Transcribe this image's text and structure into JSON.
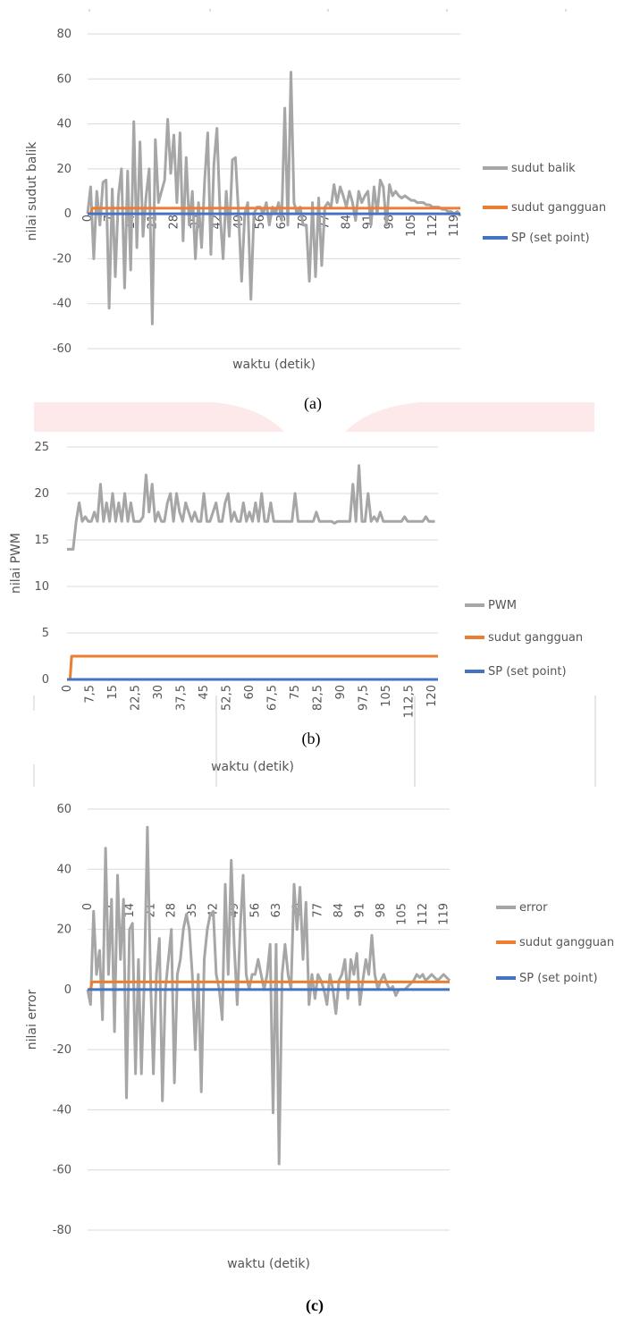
{
  "captions": [
    "(a)",
    "(b)",
    "(c)"
  ],
  "colors": {
    "series_gray": "#a6a6a6",
    "series_orange": "#ed7d31",
    "series_blue": "#4472c4",
    "gridline": "#d9d9d9",
    "band_pink": "#fde9e9"
  },
  "chart_data": [
    {
      "type": "line",
      "ylabel": "nilai sudut balik",
      "xlabel": "waktu (detik)",
      "ylim": [
        -60,
        80
      ],
      "yticks": [
        -60,
        -40,
        -20,
        0,
        20,
        40,
        60,
        80
      ],
      "xlim": [
        0,
        121
      ],
      "xtick_labels": [
        "0",
        "7",
        "14",
        "21",
        "28",
        "35",
        "42",
        "49",
        "56",
        "63",
        "70",
        "77",
        "84",
        "91",
        "98",
        "105",
        "112",
        "119"
      ],
      "xtick_values": [
        0,
        7,
        14,
        21,
        28,
        35,
        42,
        49,
        56,
        63,
        70,
        77,
        84,
        91,
        98,
        105,
        112,
        119
      ],
      "grid": true,
      "legend_position": "right",
      "series": [
        {
          "name": "sudut balik",
          "color": "gray",
          "x": [
            0,
            1,
            2,
            3,
            4,
            5,
            6,
            7,
            8,
            9,
            10,
            11,
            12,
            13,
            14,
            15,
            16,
            17,
            18,
            19,
            20,
            21,
            22,
            23,
            24,
            25,
            26,
            27,
            28,
            29,
            30,
            31,
            32,
            33,
            34,
            35,
            36,
            37,
            38,
            39,
            40,
            41,
            42,
            43,
            44,
            45,
            46,
            47,
            48,
            49,
            50,
            51,
            52,
            53,
            54,
            55,
            56,
            57,
            58,
            59,
            60,
            61,
            62,
            63,
            64,
            65,
            66,
            67,
            68,
            69,
            70,
            71,
            72,
            73,
            74,
            75,
            76,
            77,
            78,
            79,
            80,
            81,
            82,
            83,
            84,
            85,
            86,
            87,
            88,
            89,
            90,
            91,
            92,
            93,
            94,
            95,
            96,
            97,
            98,
            99,
            100,
            101,
            102,
            103,
            104,
            105,
            106,
            107,
            108,
            109,
            110,
            111,
            112,
            113,
            114,
            115,
            116,
            117,
            118,
            119,
            120,
            121
          ],
          "y": [
            0,
            12,
            -20,
            10,
            -5,
            14,
            15,
            -42,
            11,
            -28,
            8,
            20,
            -33,
            19,
            -25,
            41,
            -15,
            32,
            -10,
            8,
            20,
            -49,
            33,
            5,
            10,
            15,
            42,
            18,
            35,
            5,
            36,
            -12,
            25,
            -5,
            10,
            -20,
            5,
            -15,
            15,
            36,
            -18,
            22,
            38,
            0,
            -20,
            10,
            -10,
            24,
            25,
            0,
            -30,
            0,
            5,
            -38,
            0,
            3,
            3,
            0,
            5,
            -5,
            3,
            0,
            5,
            -3,
            47,
            -5,
            63,
            5,
            0,
            3,
            -5,
            -5,
            -30,
            5,
            -28,
            7,
            -23,
            3,
            5,
            3,
            13,
            5,
            12,
            8,
            3,
            10,
            5,
            -3,
            10,
            5,
            8,
            10,
            -5,
            12,
            0,
            15,
            12,
            -5,
            13,
            8,
            10,
            8,
            7,
            8,
            7,
            6,
            6,
            5,
            5,
            5,
            4,
            4,
            3,
            3,
            3,
            2,
            2,
            1,
            1,
            0,
            1,
            -1
          ]
        },
        {
          "name": "sudut gangguan",
          "color": "orange",
          "x": [
            0,
            1,
            1.5,
            121
          ],
          "y": [
            0,
            0,
            2.5,
            2.5
          ]
        },
        {
          "name": "SP (set point)",
          "color": "blue",
          "x": [
            0,
            121
          ],
          "y": [
            0,
            0
          ]
        }
      ]
    },
    {
      "type": "line",
      "ylabel": "nilai PWM",
      "xlabel": "waktu (detik)",
      "ylim": [
        0,
        25
      ],
      "yticks": [
        0,
        5,
        10,
        15,
        20,
        25
      ],
      "xlim": [
        0,
        122
      ],
      "xtick_labels": [
        "0",
        "7,5",
        "15",
        "22,5",
        "30",
        "37,5",
        "45",
        "52,5",
        "60",
        "67,5",
        "75",
        "82,5",
        "90",
        "97,5",
        "105",
        "112,5",
        "120"
      ],
      "xtick_values": [
        0,
        7.5,
        15,
        22.5,
        30,
        37.5,
        45,
        52.5,
        60,
        67.5,
        75,
        82.5,
        90,
        97.5,
        105,
        112.5,
        120
      ],
      "grid": true,
      "legend_position": "right",
      "series": [
        {
          "name": "PWM",
          "color": "gray",
          "x": [
            0,
            1,
            2,
            3,
            4,
            5,
            6,
            7,
            8,
            9,
            10,
            11,
            12,
            13,
            14,
            15,
            16,
            17,
            18,
            19,
            20,
            21,
            22,
            23,
            24,
            25,
            26,
            27,
            28,
            29,
            30,
            31,
            32,
            33,
            34,
            35,
            36,
            37,
            38,
            39,
            40,
            41,
            42,
            43,
            44,
            45,
            46,
            47,
            48,
            49,
            50,
            51,
            52,
            53,
            54,
            55,
            56,
            57,
            58,
            59,
            60,
            61,
            62,
            63,
            64,
            65,
            66,
            67,
            68,
            69,
            70,
            71,
            72,
            73,
            74,
            75,
            76,
            77,
            78,
            79,
            80,
            81,
            82,
            83,
            84,
            85,
            86,
            87,
            88,
            89,
            90,
            91,
            92,
            93,
            94,
            95,
            96,
            97,
            98,
            99,
            100,
            101,
            102,
            103,
            104,
            105,
            106,
            107,
            108,
            109,
            110,
            111,
            112,
            113,
            114,
            115,
            116,
            117,
            118,
            119,
            120,
            121
          ],
          "y": [
            14,
            14,
            14,
            17,
            19,
            17,
            17.5,
            17,
            17,
            18,
            17,
            21,
            17,
            19,
            17,
            20,
            17,
            19,
            17,
            20,
            17,
            19,
            17,
            17,
            17,
            17.5,
            22,
            18,
            21,
            17,
            18,
            17,
            17,
            19,
            20,
            17,
            20,
            18,
            17,
            19,
            18,
            17,
            18,
            17,
            17,
            20,
            17,
            17,
            18,
            19,
            17,
            17,
            19,
            20,
            17,
            18,
            17,
            17,
            19,
            17,
            18,
            17,
            19,
            17,
            20,
            17,
            17,
            19,
            17,
            17,
            17,
            17,
            17,
            17,
            17,
            20,
            17,
            17,
            17,
            17,
            17,
            17,
            18,
            17,
            17,
            17,
            17,
            17,
            16.8,
            17,
            17,
            17,
            17,
            17,
            21,
            17,
            23,
            17,
            17,
            20,
            17,
            17.5,
            17,
            18,
            17,
            17,
            17,
            17,
            17,
            17,
            17,
            17.5,
            17,
            17,
            17,
            17,
            17,
            17,
            17.5,
            17,
            17,
            17
          ]
        },
        {
          "name": "sudut gangguan",
          "color": "orange",
          "x": [
            0,
            1,
            1.5,
            122
          ],
          "y": [
            0,
            0,
            2.5,
            2.5
          ]
        },
        {
          "name": "SP (set point)",
          "color": "blue",
          "x": [
            0,
            122
          ],
          "y": [
            0,
            0
          ]
        }
      ]
    },
    {
      "type": "line",
      "ylabel": "nilai error",
      "xlabel": "waktu (detik)",
      "ylim": [
        -80,
        60
      ],
      "yticks": [
        -80,
        -60,
        -40,
        -20,
        0,
        20,
        40,
        60
      ],
      "xlim": [
        0,
        121
      ],
      "xtick_labels": [
        "0",
        "7",
        "14",
        "21",
        "28",
        "35",
        "42",
        "49",
        "56",
        "63",
        "70",
        "77",
        "84",
        "91",
        "98",
        "105",
        "112",
        "119"
      ],
      "xtick_values": [
        0,
        7,
        14,
        21,
        28,
        35,
        42,
        49,
        56,
        63,
        70,
        77,
        84,
        91,
        98,
        105,
        112,
        119
      ],
      "grid": true,
      "legend_position": "right",
      "series": [
        {
          "name": "error",
          "color": "gray",
          "x": [
            0,
            1,
            2,
            3,
            4,
            5,
            6,
            7,
            8,
            9,
            10,
            11,
            12,
            13,
            14,
            15,
            16,
            17,
            18,
            19,
            20,
            21,
            22,
            23,
            24,
            25,
            26,
            27,
            28,
            29,
            30,
            31,
            32,
            33,
            34,
            35,
            36,
            37,
            38,
            39,
            40,
            41,
            42,
            43,
            44,
            45,
            46,
            47,
            48,
            49,
            50,
            51,
            52,
            53,
            54,
            55,
            56,
            57,
            58,
            59,
            60,
            61,
            62,
            63,
            64,
            65,
            66,
            67,
            68,
            69,
            70,
            71,
            72,
            73,
            74,
            75,
            76,
            77,
            78,
            79,
            80,
            81,
            82,
            83,
            84,
            85,
            86,
            87,
            88,
            89,
            90,
            91,
            92,
            93,
            94,
            95,
            96,
            97,
            98,
            99,
            100,
            101,
            102,
            103,
            104,
            105,
            106,
            107,
            108,
            109,
            110,
            111,
            112,
            113,
            114,
            115,
            116,
            117,
            118,
            119,
            120,
            121
          ],
          "y": [
            0,
            -5,
            26,
            5,
            13,
            -10,
            47,
            5,
            30,
            -14,
            38,
            10,
            30,
            -36,
            20,
            22,
            -28,
            10,
            -28,
            5,
            54,
            5,
            -28,
            5,
            17,
            -37,
            0,
            10,
            20,
            -31,
            5,
            10,
            20,
            25,
            20,
            5,
            -20,
            5,
            -34,
            10,
            20,
            25,
            26,
            5,
            0,
            -10,
            35,
            5,
            43,
            15,
            -5,
            20,
            38,
            5,
            0,
            5,
            5,
            10,
            5,
            0,
            5,
            15,
            -41,
            15,
            -58,
            5,
            15,
            5,
            0,
            35,
            20,
            34,
            10,
            29,
            -5,
            5,
            -3,
            5,
            3,
            0,
            -5,
            5,
            0,
            -8,
            3,
            5,
            10,
            -3,
            10,
            5,
            12,
            -5,
            3,
            10,
            5,
            18,
            5,
            0,
            3,
            5,
            2,
            0,
            1,
            -2,
            0,
            0,
            0,
            1,
            2,
            3,
            5,
            4,
            5,
            3,
            4,
            5,
            4,
            3,
            4,
            5,
            4,
            3
          ]
        },
        {
          "name": "sudut gangguan",
          "color": "orange",
          "x": [
            0,
            1,
            1.5,
            121
          ],
          "y": [
            0,
            0,
            2.5,
            2.5
          ]
        },
        {
          "name": "SP (set point)",
          "color": "blue",
          "x": [
            0,
            121
          ],
          "y": [
            0,
            0
          ]
        }
      ]
    }
  ]
}
